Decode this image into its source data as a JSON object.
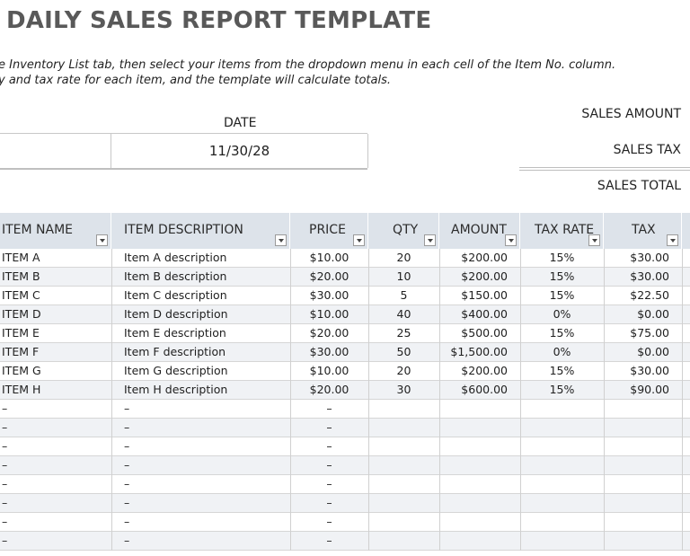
{
  "title": "DAILY SALES REPORT TEMPLATE",
  "instructions": [
    "e Inventory List tab, then select your items from the dropdown menu in each cell of the Item No. column.",
    "y and tax rate for each item, and the template will calculate totals."
  ],
  "date": {
    "label": "DATE",
    "value": "11/30/28"
  },
  "summary": {
    "sales_amount_label": "SALES AMOUNT",
    "sales_tax_label": "SALES TAX",
    "sales_total_label": "SALES TOTAL"
  },
  "table": {
    "headers": {
      "item_name": "ITEM NAME",
      "item_description": "ITEM DESCRIPTION",
      "price": "PRICE",
      "qty": "QTY",
      "amount": "AMOUNT",
      "tax_rate": "TAX RATE",
      "tax": "TAX"
    },
    "rows": [
      {
        "name": "ITEM A",
        "desc": "Item A description",
        "price": "$10.00",
        "qty": "20",
        "amount": "$200.00",
        "rate": "15%",
        "tax": "$30.00"
      },
      {
        "name": "ITEM B",
        "desc": "Item B description",
        "price": "$20.00",
        "qty": "10",
        "amount": "$200.00",
        "rate": "15%",
        "tax": "$30.00"
      },
      {
        "name": "ITEM C",
        "desc": "Item C description",
        "price": "$30.00",
        "qty": "5",
        "amount": "$150.00",
        "rate": "15%",
        "tax": "$22.50"
      },
      {
        "name": "ITEM D",
        "desc": "Item D description",
        "price": "$10.00",
        "qty": "40",
        "amount": "$400.00",
        "rate": "0%",
        "tax": "$0.00"
      },
      {
        "name": "ITEM E",
        "desc": "Item E description",
        "price": "$20.00",
        "qty": "25",
        "amount": "$500.00",
        "rate": "15%",
        "tax": "$75.00"
      },
      {
        "name": "ITEM F",
        "desc": "Item F description",
        "price": "$30.00",
        "qty": "50",
        "amount": "$1,500.00",
        "rate": "0%",
        "tax": "$0.00"
      },
      {
        "name": "ITEM G",
        "desc": "Item G description",
        "price": "$10.00",
        "qty": "20",
        "amount": "$200.00",
        "rate": "15%",
        "tax": "$30.00"
      },
      {
        "name": "ITEM H",
        "desc": "Item H description",
        "price": "$20.00",
        "qty": "30",
        "amount": "$600.00",
        "rate": "15%",
        "tax": "$90.00"
      },
      {
        "name": "–",
        "desc": "–",
        "price": "–",
        "qty": "",
        "amount": "",
        "rate": "",
        "tax": ""
      },
      {
        "name": "–",
        "desc": "–",
        "price": "–",
        "qty": "",
        "amount": "",
        "rate": "",
        "tax": ""
      },
      {
        "name": "–",
        "desc": "–",
        "price": "–",
        "qty": "",
        "amount": "",
        "rate": "",
        "tax": ""
      },
      {
        "name": "–",
        "desc": "–",
        "price": "–",
        "qty": "",
        "amount": "",
        "rate": "",
        "tax": ""
      },
      {
        "name": "–",
        "desc": "–",
        "price": "–",
        "qty": "",
        "amount": "",
        "rate": "",
        "tax": ""
      },
      {
        "name": "–",
        "desc": "–",
        "price": "–",
        "qty": "",
        "amount": "",
        "rate": "",
        "tax": ""
      },
      {
        "name": "–",
        "desc": "–",
        "price": "–",
        "qty": "",
        "amount": "",
        "rate": "",
        "tax": ""
      },
      {
        "name": "–",
        "desc": "–",
        "price": "–",
        "qty": "",
        "amount": "",
        "rate": "",
        "tax": ""
      }
    ]
  },
  "colors": {
    "header_bg": "#dde3ea",
    "row_shade": "#f0f2f5",
    "title": "#595959"
  },
  "icons": {
    "filter": "filter-dropdown-icon"
  }
}
